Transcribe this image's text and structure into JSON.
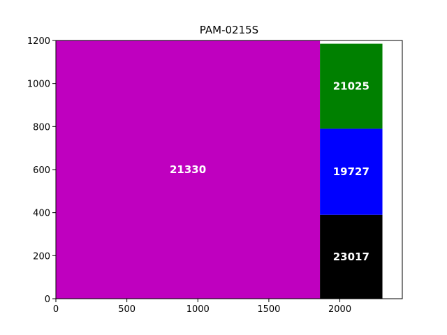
{
  "chart_data": {
    "type": "treemap",
    "title": "PAM-0215S",
    "xlabel": "",
    "ylabel": "",
    "xlim": [
      0,
      2440
    ],
    "ylim": [
      0,
      1200
    ],
    "xticks": [
      0,
      500,
      1000,
      1500,
      2000
    ],
    "yticks": [
      0,
      200,
      400,
      600,
      800,
      1000,
      1200
    ],
    "grid": false,
    "rects": [
      {
        "label": "21330",
        "x0": 0,
        "x1": 1860,
        "y0": 0,
        "y1": 1200,
        "color": "#bf00bf"
      },
      {
        "label": "23017",
        "x0": 1860,
        "x1": 2300,
        "y0": 0,
        "y1": 390,
        "color": "#000000"
      },
      {
        "label": "19727",
        "x0": 1860,
        "x1": 2300,
        "y0": 390,
        "y1": 790,
        "color": "#0000ff"
      },
      {
        "label": "21025",
        "x0": 1860,
        "x1": 2300,
        "y0": 790,
        "y1": 1185,
        "color": "#008000"
      }
    ]
  }
}
